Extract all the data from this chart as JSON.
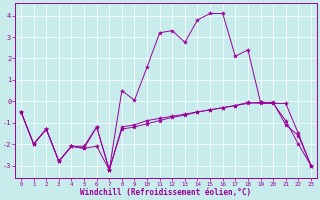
{
  "xlabel": "Windchill (Refroidissement éolien,°C)",
  "background_color": "#c8ecec",
  "line_color": "#990099",
  "grid_color": "#ffffff",
  "xlim": [
    -0.5,
    23.5
  ],
  "ylim": [
    -3.6,
    4.6
  ],
  "xticks": [
    0,
    1,
    2,
    3,
    4,
    5,
    6,
    7,
    8,
    9,
    10,
    11,
    12,
    13,
    14,
    15,
    16,
    17,
    18,
    19,
    20,
    21,
    22,
    23
  ],
  "yticks": [
    -3,
    -2,
    -1,
    0,
    1,
    2,
    3,
    4
  ],
  "series": [
    {
      "x": [
        0,
        1,
        2,
        3,
        4,
        5,
        6,
        7,
        8,
        9,
        10,
        11,
        12,
        13,
        14,
        15,
        16,
        17,
        18,
        19,
        20,
        21,
        22,
        23
      ],
      "y": [
        -0.5,
        -2.0,
        -1.3,
        -2.8,
        -2.1,
        -2.2,
        -2.1,
        -3.2,
        -1.3,
        -1.2,
        -1.05,
        -0.9,
        -0.75,
        -0.65,
        -0.5,
        -0.4,
        -0.3,
        -0.2,
        -0.05,
        -0.1,
        -0.1,
        -0.1,
        -1.5,
        -3.0
      ]
    },
    {
      "x": [
        0,
        1,
        2,
        3,
        4,
        5,
        6,
        7,
        8,
        9,
        10,
        11,
        12,
        13,
        14,
        15,
        16,
        17,
        18,
        19,
        20,
        21,
        22,
        23
      ],
      "y": [
        -0.5,
        -2.0,
        -1.3,
        -2.8,
        -2.1,
        -2.2,
        -1.2,
        -3.2,
        -1.2,
        -1.1,
        -0.9,
        -0.8,
        -0.7,
        -0.6,
        -0.5,
        -0.4,
        -0.3,
        -0.2,
        -0.1,
        -0.05,
        -0.05,
        -1.1,
        -1.6,
        -3.0
      ]
    },
    {
      "x": [
        0,
        1,
        2,
        3,
        4,
        5,
        6,
        7,
        8,
        9,
        10,
        11,
        12,
        13,
        14,
        15,
        16,
        17,
        18,
        19,
        20,
        21,
        22,
        23
      ],
      "y": [
        -0.5,
        -2.0,
        -1.3,
        -2.8,
        -2.1,
        -2.1,
        -1.2,
        -3.2,
        0.5,
        0.05,
        1.6,
        3.2,
        3.3,
        2.75,
        3.8,
        4.1,
        4.1,
        2.1,
        2.4,
        -0.05,
        -0.1,
        -0.9,
        -2.0,
        -3.0
      ]
    }
  ]
}
